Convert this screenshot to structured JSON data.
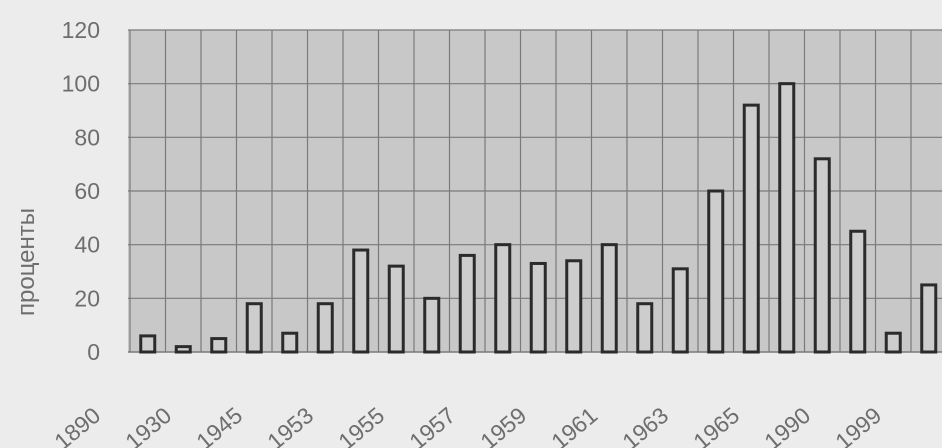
{
  "chart_data": {
    "type": "bar",
    "title": "",
    "xlabel": "",
    "ylabel": "проценты",
    "ylim": [
      0,
      120
    ],
    "yticks": [
      0,
      20,
      40,
      60,
      80,
      100,
      120
    ],
    "grid": true,
    "x_tick_labels": [
      "1890",
      "1930",
      "1945",
      "1953",
      "1955",
      "1957",
      "1959",
      "1961",
      "1963",
      "1965",
      "1990",
      "1999"
    ],
    "values": [
      6,
      2,
      5,
      18,
      7,
      18,
      38,
      32,
      20,
      36,
      40,
      33,
      34,
      40,
      18,
      31,
      60,
      92,
      100,
      72,
      45,
      7,
      25
    ],
    "colors": {
      "plot_background": "#c8c8c8",
      "bar_fill": "#cdcdcd",
      "bar_stroke": "#2b2b2b",
      "gridline": "#7a7a7a",
      "text": "#6e6e6e"
    }
  }
}
